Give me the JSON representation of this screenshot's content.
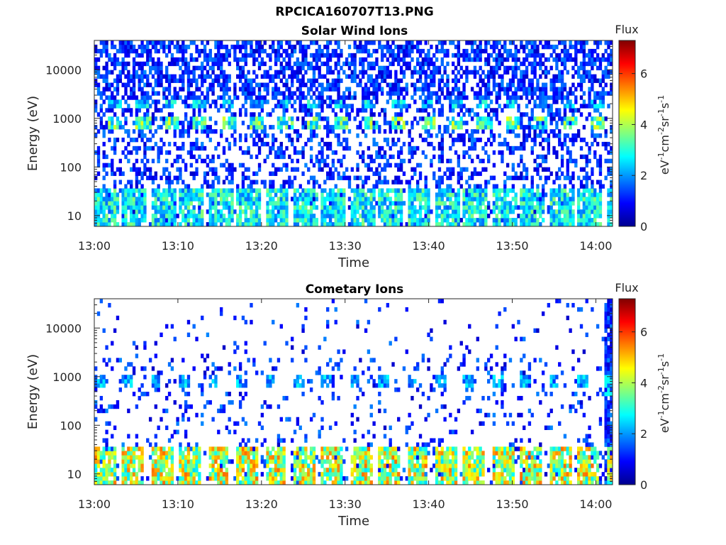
{
  "page": {
    "title": "RPCICA160707T13.PNG"
  },
  "chart_data": [
    {
      "type": "heatmap",
      "title": "Solar Wind Ions",
      "xlabel": "Time",
      "ylabel": "Energy (eV)",
      "x_ticks": [
        "13:00",
        "13:10",
        "13:20",
        "13:30",
        "13:40",
        "13:50",
        "14:00"
      ],
      "x_range_minutes": [
        0,
        62
      ],
      "y_scale": "log",
      "y_range_eV": [
        6,
        40000
      ],
      "y_ticks": [
        "10",
        "100",
        "1000",
        "10000"
      ],
      "colorbar": {
        "title": "Flux",
        "label": "eV-1cm-2sr-1s-1",
        "range": [
          0,
          7.3
        ],
        "ticks": [
          "0",
          "2",
          "4",
          "6"
        ],
        "colormap": "jet"
      },
      "features": {
        "bands": [
          {
            "energy_eV": [
              1500,
              2300
            ],
            "period_min": 3.4,
            "phase_min": 1.6,
            "level": 2.6,
            "duty": 0.45
          },
          {
            "energy_eV": [
              550,
              1000
            ],
            "period_min": 3.4,
            "phase_min": 1.6,
            "level": 3.6,
            "duty": 0.5
          },
          {
            "energy_eV": [
              6,
              35
            ],
            "period_min": 3.4,
            "phase_min": 0.0,
            "level": 3.0,
            "duty": 0.85
          }
        ],
        "background_density": {
          "high_energy": 0.6,
          "mid_energy": 0.35
        }
      }
    },
    {
      "type": "heatmap",
      "title": "Cometary Ions",
      "xlabel": "Time",
      "ylabel": "Energy (eV)",
      "x_ticks": [
        "13:00",
        "13:10",
        "13:20",
        "13:30",
        "13:40",
        "13:50",
        "14:00"
      ],
      "x_range_minutes": [
        0,
        62
      ],
      "y_scale": "log",
      "y_range_eV": [
        6,
        40000
      ],
      "y_ticks": [
        "10",
        "100",
        "1000",
        "10000"
      ],
      "colorbar": {
        "title": "Flux",
        "label": "eV-1cm-2sr-1s-1",
        "range": [
          0,
          7.3
        ],
        "ticks": [
          "0",
          "2",
          "4",
          "6"
        ],
        "colormap": "jet"
      },
      "features": {
        "bands": [
          {
            "energy_eV": [
              550,
              1000
            ],
            "period_min": 3.4,
            "phase_min": 0.0,
            "level": 2.3,
            "duty": 0.35
          },
          {
            "energy_eV": [
              6,
              35
            ],
            "period_min": 3.4,
            "phase_min": 0.0,
            "level": 4.5,
            "duty": 0.75
          }
        ],
        "dense_column_minutes": [
          61,
          62.5
        ],
        "background_density": {
          "high_energy": 0.05,
          "mid_energy": 0.12
        }
      }
    }
  ]
}
